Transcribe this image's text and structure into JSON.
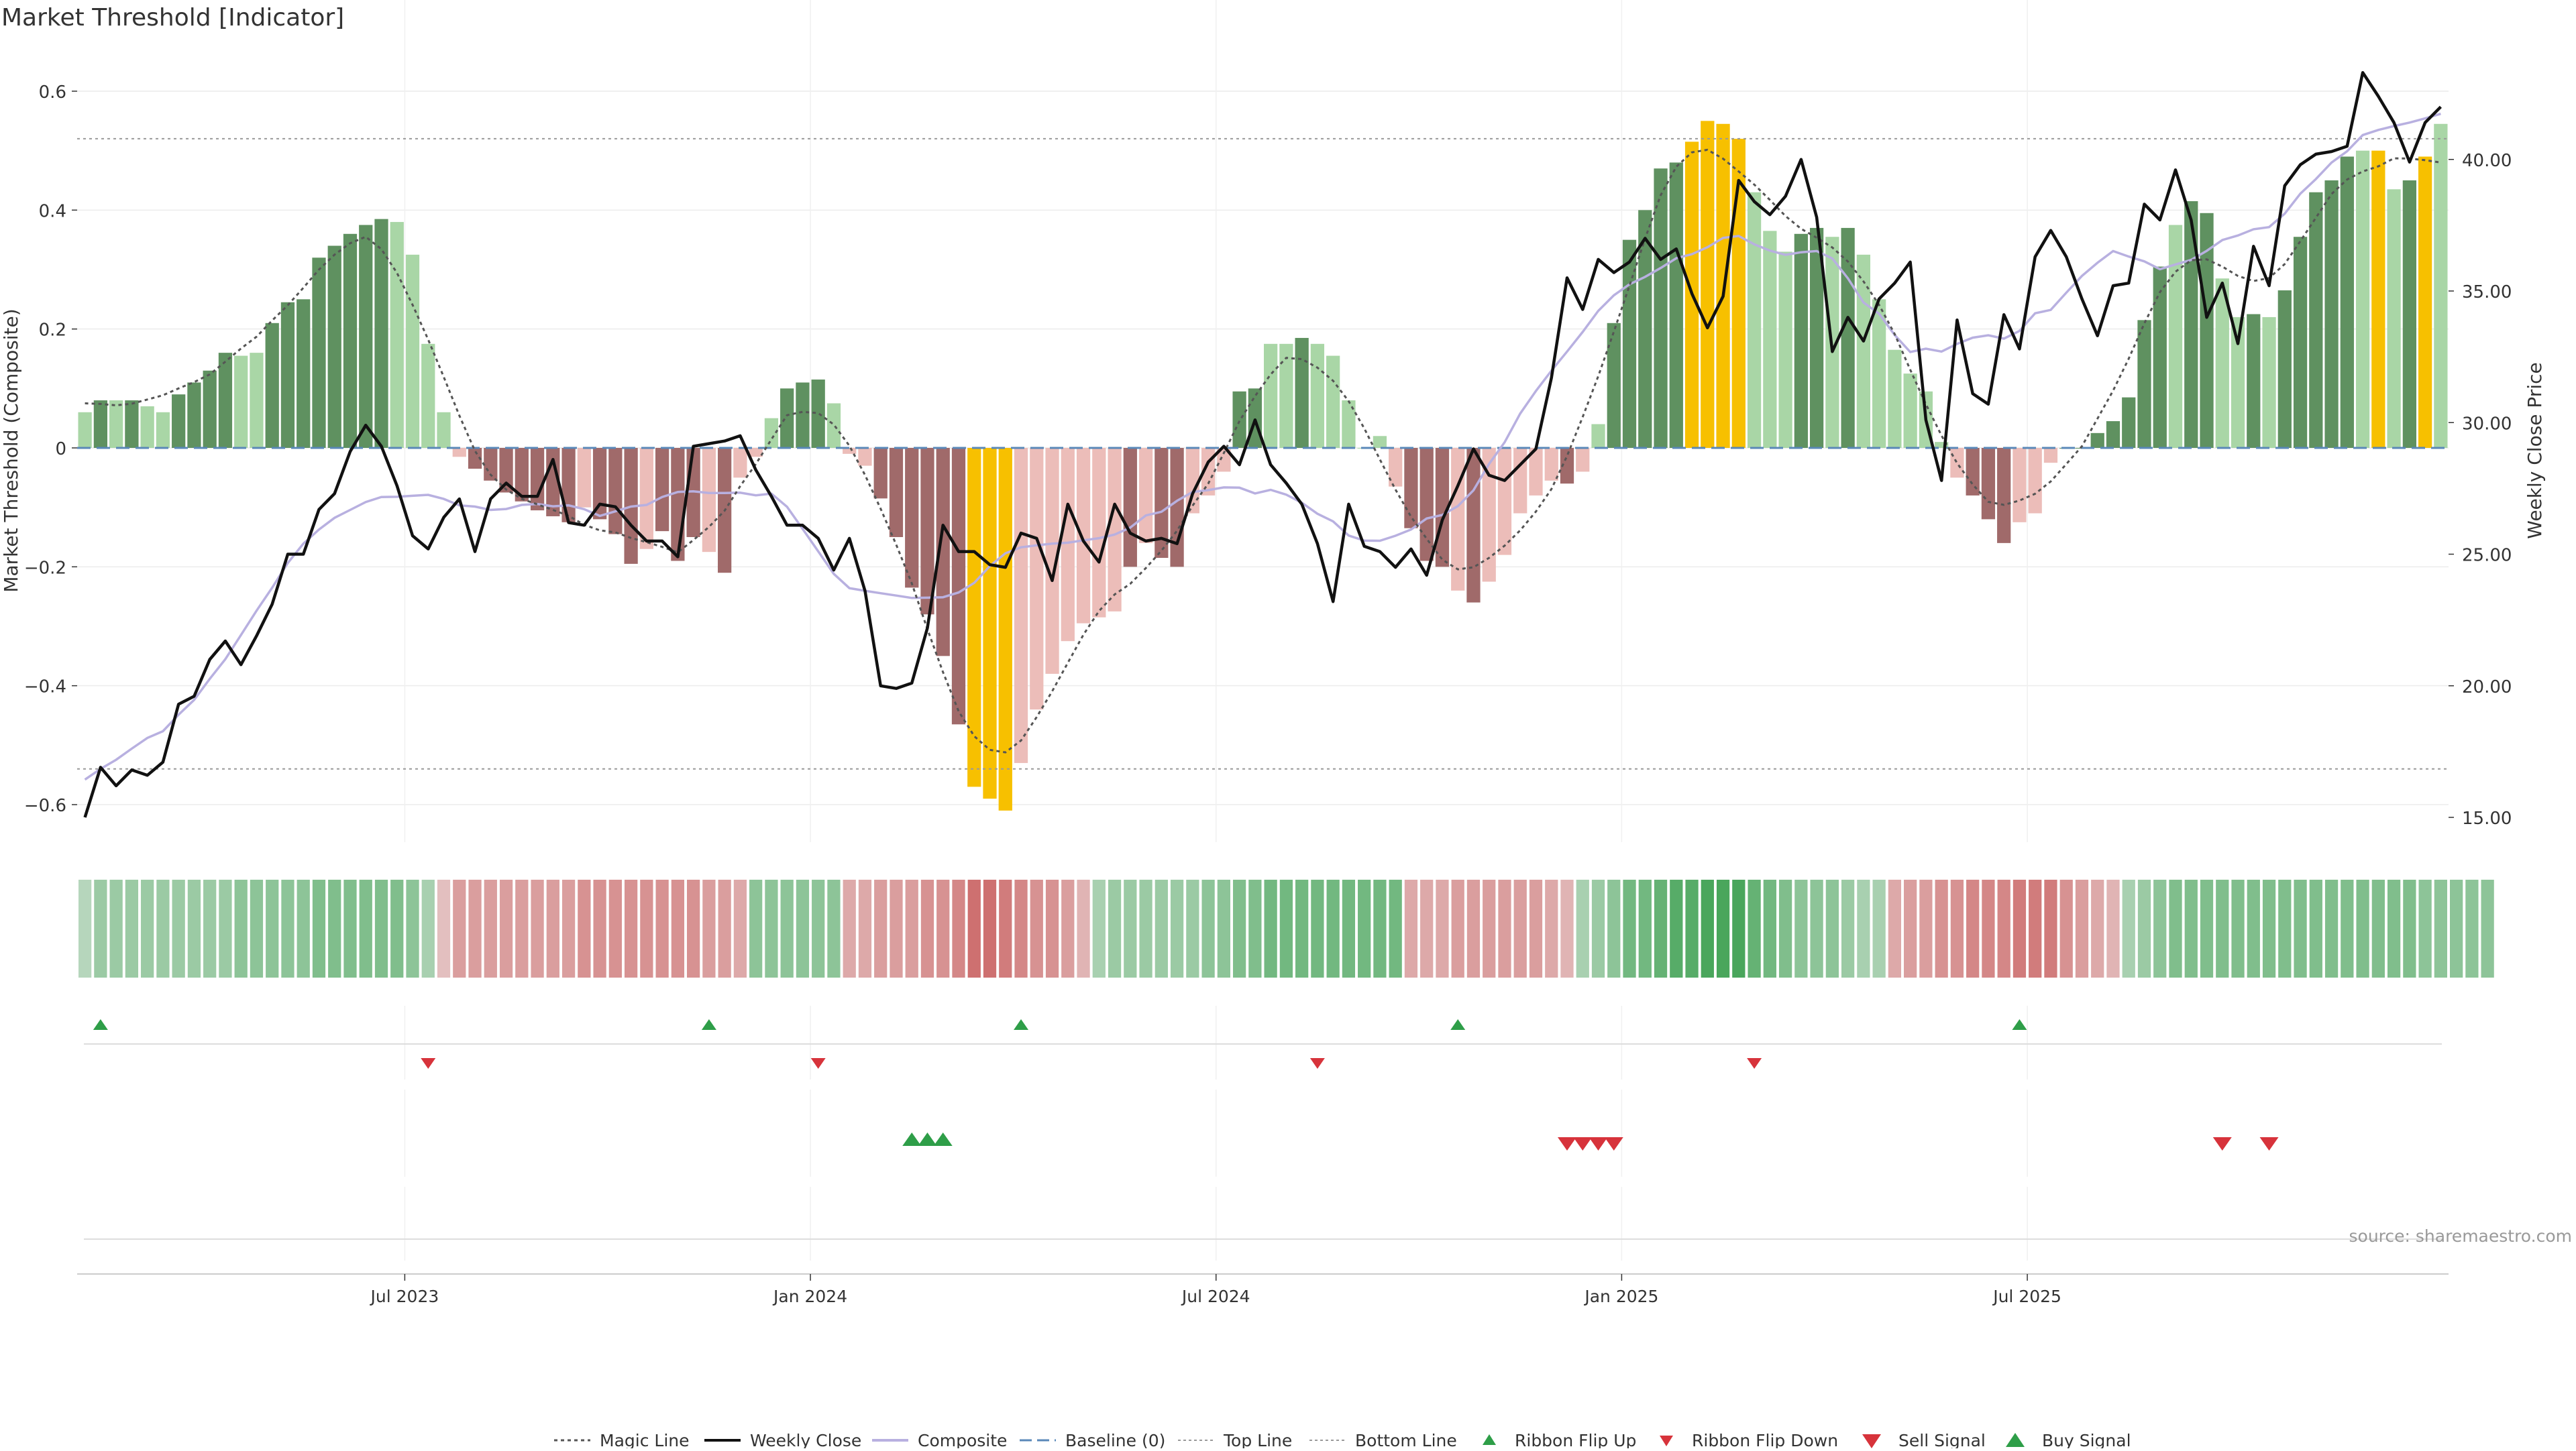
{
  "chart_data": {
    "type": "bar",
    "title": "Market Threshold [Indicator]",
    "ylabel": "Market Threshold (Composite)",
    "y2label": "Weekly Close Price",
    "ylim": [
      -0.66,
      0.66
    ],
    "y2lim": [
      13.5,
      43.5
    ],
    "y_ticks": [
      {
        "v": 0.6,
        "label": "0.6"
      },
      {
        "v": 0.4,
        "label": "0.4"
      },
      {
        "v": 0.2,
        "label": "0.2"
      },
      {
        "v": 0,
        "label": "0"
      },
      {
        "v": -0.2,
        "label": "−0.2"
      },
      {
        "v": -0.4,
        "label": "−0.4"
      },
      {
        "v": -0.6,
        "label": "−0.6"
      }
    ],
    "y2_ticks": [
      {
        "v": 40,
        "label": "40.00"
      },
      {
        "v": 35,
        "label": "35.00"
      },
      {
        "v": 30,
        "label": "30.00"
      },
      {
        "v": 25,
        "label": "25.00"
      },
      {
        "v": 20,
        "label": "20.00"
      },
      {
        "v": 15,
        "label": "15.00"
      }
    ],
    "x_ticks": [
      {
        "i": 21,
        "label": "Jul 2023"
      },
      {
        "i": 47,
        "label": "Jan 2024"
      },
      {
        "i": 73,
        "label": "Jul 2024"
      },
      {
        "i": 99,
        "label": "Jan 2025"
      },
      {
        "i": 125,
        "label": "Jul 2025"
      }
    ],
    "top_line": 0.52,
    "bottom_line": -0.54,
    "composite_bars": [
      0.06,
      0.08,
      0.08,
      0.08,
      0.07,
      0.06,
      0.09,
      0.11,
      0.13,
      0.16,
      0.155,
      0.16,
      0.21,
      0.245,
      0.25,
      0.32,
      0.34,
      0.36,
      0.375,
      0.385,
      0.38,
      0.325,
      0.175,
      0.06,
      -0.015,
      -0.035,
      -0.055,
      -0.075,
      -0.09,
      -0.105,
      -0.115,
      -0.125,
      -0.1,
      -0.12,
      -0.145,
      -0.195,
      -0.17,
      -0.14,
      -0.19,
      -0.15,
      -0.175,
      -0.21,
      -0.05,
      -0.015,
      0.05,
      0.1,
      0.11,
      0.115,
      0.075,
      -0.01,
      -0.03,
      -0.085,
      -0.15,
      -0.235,
      -0.28,
      -0.35,
      -0.465,
      -0.57,
      -0.59,
      -0.61,
      -0.53,
      -0.44,
      -0.38,
      -0.325,
      -0.295,
      -0.285,
      -0.275,
      -0.2,
      -0.16,
      -0.185,
      -0.2,
      -0.11,
      -0.08,
      -0.04,
      0.095,
      0.1,
      0.175,
      0.175,
      0.185,
      0.175,
      0.155,
      0.08,
      0,
      0.02,
      -0.065,
      -0.135,
      -0.19,
      -0.2,
      -0.24,
      -0.26,
      -0.225,
      -0.18,
      -0.11,
      -0.08,
      -0.055,
      -0.06,
      -0.04,
      0.04,
      0.21,
      0.35,
      0.4,
      0.47,
      0.48,
      0.515,
      0.55,
      0.545,
      0.52,
      0.43,
      0.365,
      0.33,
      0.36,
      0.37,
      0.355,
      0.37,
      0.325,
      0.25,
      0.165,
      0.125,
      0.095,
      0.01,
      -0.05,
      -0.08,
      -0.12,
      -0.16,
      -0.125,
      -0.11,
      -0.025,
      0,
      0,
      0.025,
      0.045,
      0.085,
      0.215,
      0.305,
      0.375,
      0.415,
      0.395,
      0.285,
      0.22,
      0.225,
      0.22,
      0.265,
      0.355,
      0.43,
      0.45,
      0.49,
      0.5,
      0.5,
      0.435,
      0.45,
      0.49,
      0.545
    ],
    "bar_category": [
      "l",
      "d",
      "l",
      "d",
      "l",
      "l",
      "d",
      "d",
      "d",
      "d",
      "l",
      "l",
      "d",
      "d",
      "d",
      "d",
      "d",
      "d",
      "d",
      "d",
      "l",
      "l",
      "l",
      "l",
      "r",
      "R",
      "R",
      "R",
      "R",
      "R",
      "R",
      "R",
      "r",
      "R",
      "R",
      "R",
      "r",
      "R",
      "R",
      "R",
      "r",
      "R",
      "r",
      "r",
      "l",
      "d",
      "d",
      "d",
      "l",
      "r",
      "r",
      "R",
      "R",
      "R",
      "R",
      "R",
      "R",
      "Y",
      "Y",
      "Y",
      "r",
      "r",
      "r",
      "r",
      "r",
      "r",
      "r",
      "R",
      "r",
      "R",
      "R",
      "r",
      "r",
      "r",
      "d",
      "d",
      "l",
      "l",
      "d",
      "l",
      "l",
      "l",
      "l",
      "l",
      "r",
      "R",
      "R",
      "R",
      "r",
      "R",
      "r",
      "r",
      "r",
      "r",
      "r",
      "R",
      "r",
      "l",
      "d",
      "d",
      "d",
      "d",
      "d",
      "Y",
      "Y",
      "Y",
      "Y",
      "l",
      "l",
      "l",
      "d",
      "d",
      "l",
      "d",
      "l",
      "l",
      "l",
      "l",
      "l",
      "l",
      "r",
      "R",
      "R",
      "R",
      "r",
      "r",
      "r",
      "d",
      "d",
      "d",
      "d",
      "d",
      "d",
      "d",
      "l",
      "d",
      "d",
      "l",
      "l",
      "d",
      "l",
      "d",
      "d",
      "d",
      "d",
      "d",
      "l",
      "Y",
      "l",
      "d",
      "Y"
    ],
    "weekly_close": [
      15.0,
      16.9,
      16.2,
      16.8,
      16.6,
      17.1,
      19.3,
      19.6,
      21.0,
      21.7,
      20.8,
      21.9,
      23.1,
      25.0,
      25.0,
      26.7,
      27.3,
      28.9,
      29.9,
      29.1,
      27.6,
      25.7,
      25.2,
      26.4,
      27.1,
      25.1,
      27.1,
      27.7,
      27.2,
      27.2,
      28.6,
      26.2,
      26.1,
      26.9,
      26.8,
      26.1,
      25.5,
      25.5,
      24.9,
      29.1,
      29.2,
      29.3,
      29.5,
      28.2,
      27.2,
      26.1,
      26.1,
      25.6,
      24.4,
      25.6,
      23.6,
      20.0,
      19.9,
      20.1,
      22.2,
      26.1,
      25.1,
      25.1,
      24.6,
      24.5,
      25.8,
      25.6,
      24.0,
      26.9,
      25.5,
      24.7,
      26.9,
      25.8,
      25.5,
      25.6,
      25.4,
      27.3,
      28.5,
      29.1,
      28.4,
      30.1,
      28.4,
      27.7,
      26.9,
      25.4,
      23.2,
      26.9,
      25.3,
      25.1,
      24.5,
      25.2,
      24.2,
      26.3,
      27.6,
      29.0,
      28.0,
      27.8,
      28.4,
      29.0,
      31.7,
      35.5,
      34.3,
      36.2,
      35.7,
      36.1,
      37.0,
      36.2,
      36.6,
      34.9,
      33.6,
      34.8,
      39.2,
      38.4,
      37.9,
      38.6,
      40.0,
      37.8,
      32.7,
      34.0,
      33.1,
      34.7,
      35.3,
      36.1,
      30.1,
      27.8,
      33.9,
      31.1,
      30.7,
      34.1,
      32.8,
      36.3,
      37.3,
      36.3,
      34.7,
      33.3,
      35.2,
      35.3,
      38.3,
      37.7,
      39.6,
      37.7,
      34.0,
      35.3,
      33.0,
      36.7,
      35.2,
      39.0,
      39.8,
      40.2,
      40.3,
      40.5,
      43.3,
      42.4,
      41.4,
      39.9,
      41.4,
      42.0
    ]
  },
  "ribbon_values": [
    0.1,
    0.3,
    0.3,
    0.3,
    0.3,
    0.3,
    0.3,
    0.3,
    0.3,
    0.3,
    0.4,
    0.4,
    0.4,
    0.4,
    0.4,
    0.5,
    0.5,
    0.5,
    0.5,
    0.5,
    0.5,
    0.4,
    0.2,
    -0.1,
    -0.4,
    -0.4,
    -0.4,
    -0.4,
    -0.4,
    -0.4,
    -0.4,
    -0.4,
    -0.5,
    -0.5,
    -0.5,
    -0.5,
    -0.5,
    -0.5,
    -0.5,
    -0.5,
    -0.4,
    -0.4,
    -0.3,
    0.4,
    0.4,
    0.4,
    0.4,
    0.4,
    0.4,
    -0.3,
    -0.3,
    -0.4,
    -0.4,
    -0.4,
    -0.5,
    -0.5,
    -0.6,
    -0.8,
    -0.8,
    -0.7,
    -0.6,
    -0.5,
    -0.5,
    -0.4,
    -0.2,
    0.2,
    0.3,
    0.3,
    0.3,
    0.3,
    0.3,
    0.3,
    0.4,
    0.4,
    0.5,
    0.5,
    0.6,
    0.6,
    0.6,
    0.6,
    0.6,
    0.6,
    0.6,
    0.6,
    0.6,
    -0.3,
    -0.3,
    -0.3,
    -0.4,
    -0.4,
    -0.4,
    -0.4,
    -0.4,
    -0.4,
    -0.3,
    -0.2,
    0.2,
    0.3,
    0.4,
    0.6,
    0.6,
    0.7,
    0.8,
    0.8,
    0.9,
    0.9,
    0.9,
    0.7,
    0.6,
    0.5,
    0.4,
    0.4,
    0.4,
    0.3,
    0.2,
    0.2,
    -0.3,
    -0.4,
    -0.4,
    -0.5,
    -0.5,
    -0.6,
    -0.6,
    -0.6,
    -0.7,
    -0.7,
    -0.7,
    -0.5,
    -0.4,
    -0.3,
    -0.2,
    0.2,
    0.3,
    0.4,
    0.5,
    0.5,
    0.5,
    0.5,
    0.5,
    0.5,
    0.5,
    0.5,
    0.5,
    0.5,
    0.5,
    0.5,
    0.5,
    0.5,
    0.5,
    0.5,
    0.4,
    0.4,
    0.4,
    0.4,
    0.4
  ],
  "signals": {
    "ribbon_flip_up": [
      1,
      40,
      60,
      88,
      124
    ],
    "ribbon_flip_down": [
      22,
      47,
      79,
      107
    ],
    "buy_signal": [
      53,
      54,
      55
    ],
    "sell_signal": [
      95,
      96,
      97,
      98,
      137,
      140
    ]
  },
  "source_text": "source: sharemaestro.com",
  "legend": {
    "magic_line": "Magic Line",
    "weekly_close": "Weekly Close",
    "composite": "Composite",
    "baseline": "Baseline (0)",
    "top_line": "Top Line",
    "bottom_line": "Bottom Line",
    "ribbon_flip_up": "Ribbon Flip Up",
    "ribbon_flip_down": "Ribbon Flip Down",
    "sell_signal": "Sell Signal",
    "buy_signal": "Buy Signal"
  },
  "colors": {
    "dark_green": "#5f9160",
    "light_green": "#a9d6a6",
    "dark_red": "#a06a6a",
    "light_red": "#ecbdb9",
    "yellow": "#f7c000",
    "composite_line": "#b8b0e0",
    "baseline": "#5a88b8",
    "guide_line": "#999999",
    "buy": "#2e9e48",
    "sell": "#d7333b"
  }
}
